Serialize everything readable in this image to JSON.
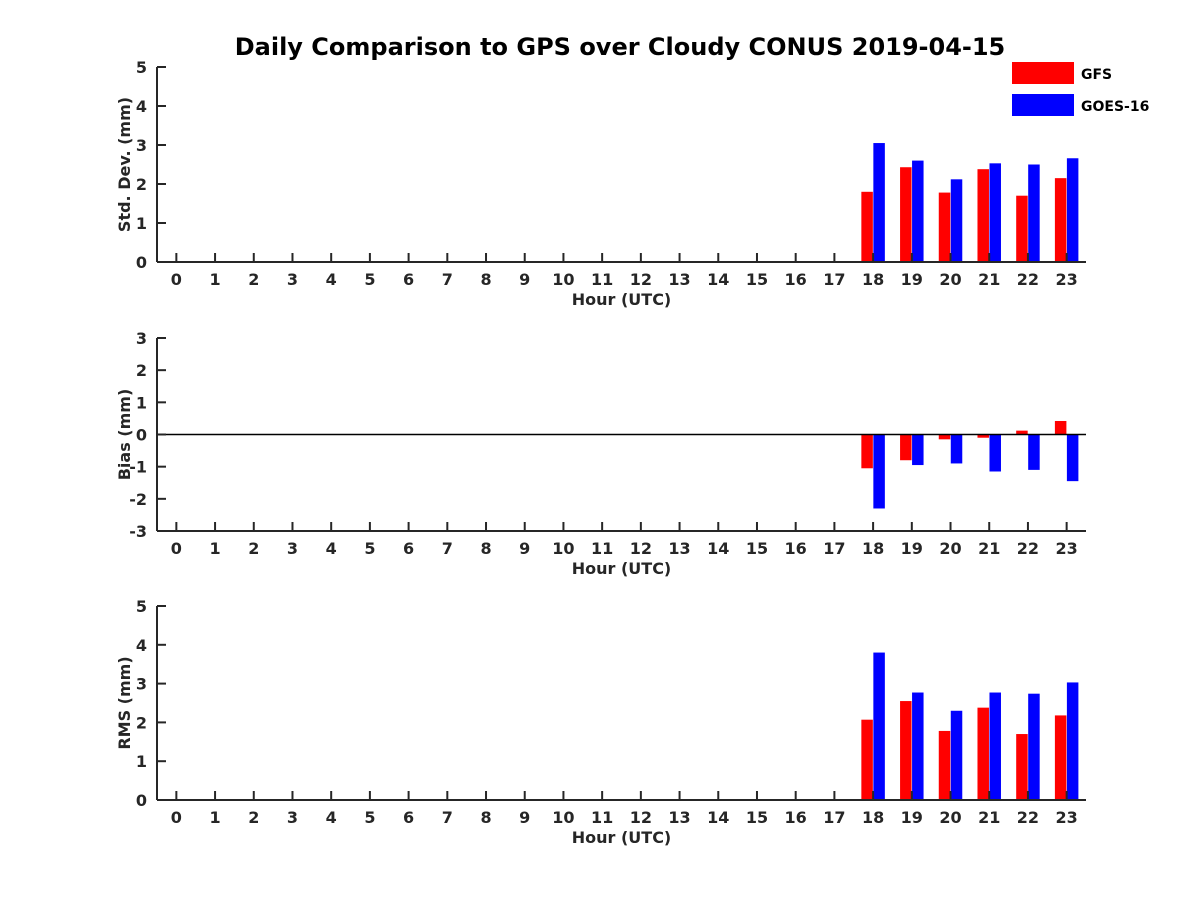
{
  "chart_data": {
    "type": "bar",
    "title": "Daily Comparison to GPS over Cloudy CONUS 2019-04-15",
    "categories": [
      "0",
      "1",
      "2",
      "3",
      "4",
      "5",
      "6",
      "7",
      "8",
      "9",
      "10",
      "11",
      "12",
      "13",
      "14",
      "15",
      "16",
      "17",
      "18",
      "19",
      "20",
      "21",
      "22",
      "23"
    ],
    "legend": {
      "placement": "top-right",
      "entries": [
        {
          "name": "GFS",
          "color": "#ff0000"
        },
        {
          "name": "GOES-16",
          "color": "#0000ff"
        }
      ]
    },
    "panels": [
      {
        "ylabel": "Std. Dev. (mm)",
        "xlabel": "Hour (UTC)",
        "ylim": [
          0,
          5
        ],
        "yticks": [
          0,
          1,
          2,
          3,
          4,
          5
        ],
        "zero_line": false,
        "series": [
          {
            "name": "GFS",
            "values": [
              null,
              null,
              null,
              null,
              null,
              null,
              null,
              null,
              null,
              null,
              null,
              null,
              null,
              null,
              null,
              null,
              null,
              null,
              1.8,
              2.43,
              1.78,
              2.38,
              1.7,
              2.15
            ]
          },
          {
            "name": "GOES-16",
            "values": [
              null,
              null,
              null,
              null,
              null,
              null,
              null,
              null,
              null,
              null,
              null,
              null,
              null,
              null,
              null,
              null,
              null,
              null,
              3.05,
              2.6,
              2.12,
              2.53,
              2.5,
              2.66
            ]
          }
        ]
      },
      {
        "ylabel": "Bias (mm)",
        "xlabel": "Hour (UTC)",
        "ylim": [
          -3,
          3
        ],
        "yticks": [
          -3,
          -2,
          -1,
          0,
          1,
          2,
          3
        ],
        "zero_line": true,
        "series": [
          {
            "name": "GFS",
            "values": [
              null,
              null,
              null,
              null,
              null,
              null,
              null,
              null,
              null,
              null,
              null,
              null,
              null,
              null,
              null,
              null,
              null,
              null,
              -1.05,
              -0.8,
              -0.15,
              -0.1,
              0.12,
              0.42
            ]
          },
          {
            "name": "GOES-16",
            "values": [
              null,
              null,
              null,
              null,
              null,
              null,
              null,
              null,
              null,
              null,
              null,
              null,
              null,
              null,
              null,
              null,
              null,
              null,
              -2.3,
              -0.95,
              -0.9,
              -1.15,
              -1.1,
              -1.45
            ]
          }
        ]
      },
      {
        "ylabel": "RMS (mm)",
        "xlabel": "Hour (UTC)",
        "ylim": [
          0,
          5
        ],
        "yticks": [
          0,
          1,
          2,
          3,
          4,
          5
        ],
        "zero_line": false,
        "series": [
          {
            "name": "GFS",
            "values": [
              null,
              null,
              null,
              null,
              null,
              null,
              null,
              null,
              null,
              null,
              null,
              null,
              null,
              null,
              null,
              null,
              null,
              null,
              2.07,
              2.55,
              1.78,
              2.38,
              1.7,
              2.18
            ]
          },
          {
            "name": "GOES-16",
            "values": [
              null,
              null,
              null,
              null,
              null,
              null,
              null,
              null,
              null,
              null,
              null,
              null,
              null,
              null,
              null,
              null,
              null,
              null,
              3.8,
              2.77,
              2.3,
              2.77,
              2.74,
              3.03
            ]
          }
        ]
      }
    ]
  }
}
